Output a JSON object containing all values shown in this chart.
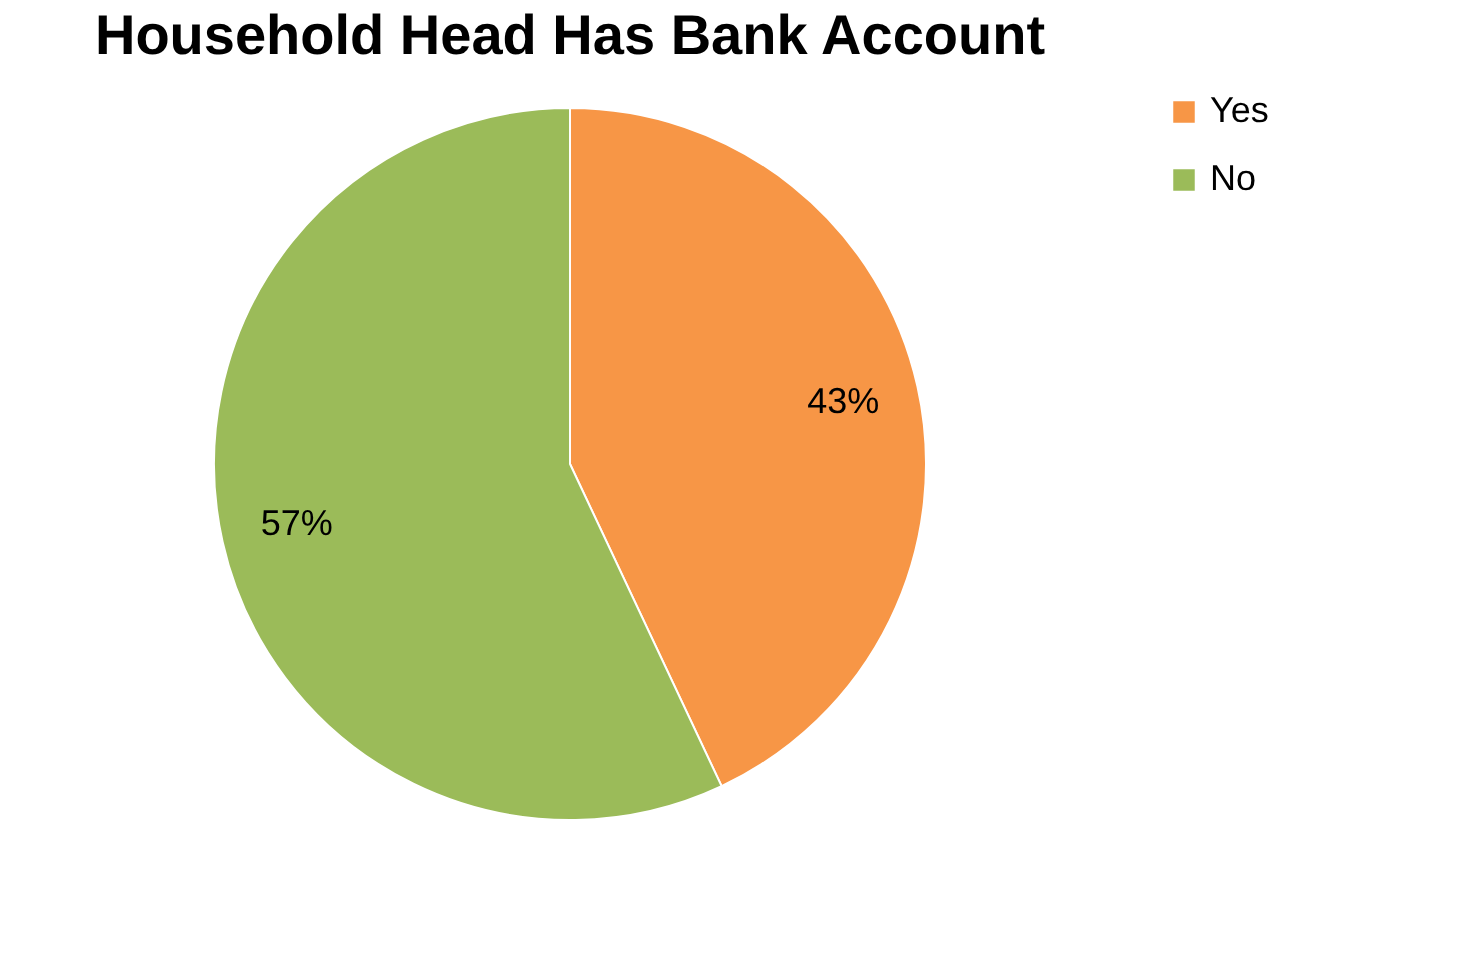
{
  "chart_data": {
    "type": "pie",
    "title": "Household Head Has Bank Account",
    "categories": [
      "Yes",
      "No"
    ],
    "values": [
      43,
      57
    ],
    "colors": [
      "#f79646",
      "#9bbb59"
    ],
    "value_labels": [
      "43%",
      "57%"
    ],
    "legend": "right"
  }
}
